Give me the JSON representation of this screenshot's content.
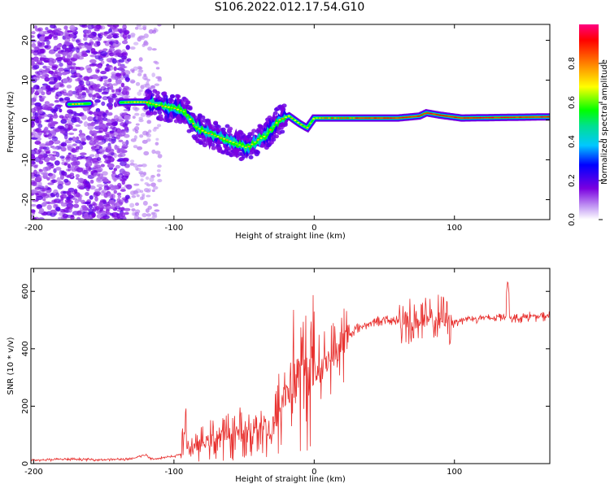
{
  "title": "S106.2022.012.17.54.G10",
  "chart_data": [
    {
      "type": "heatmap",
      "xlabel": "Height of straight line (km)",
      "ylabel": "Frequency (Hz)",
      "xlim": [
        -202,
        168
      ],
      "ylim": [
        -25,
        24
      ],
      "xticks": [
        -200,
        -100,
        0,
        100
      ],
      "yticks": [
        -20,
        -10,
        0,
        10,
        20
      ],
      "grid": false,
      "ridge": [
        {
          "x": -170,
          "f": 4.0
        },
        {
          "x": -130,
          "f": 4.5
        },
        {
          "x": -120,
          "f": 4.5
        },
        {
          "x": -108,
          "f": 3.5
        },
        {
          "x": -100,
          "f": 3.0
        },
        {
          "x": -92,
          "f": 2.0
        },
        {
          "x": -85,
          "f": -1.5
        },
        {
          "x": -78,
          "f": -3.0
        },
        {
          "x": -70,
          "f": -4.0
        },
        {
          "x": -62,
          "f": -5.0
        },
        {
          "x": -55,
          "f": -6.0
        },
        {
          "x": -48,
          "f": -7.0
        },
        {
          "x": -40,
          "f": -5.0
        },
        {
          "x": -35,
          "f": -4.0
        },
        {
          "x": -30,
          "f": -2.0
        },
        {
          "x": -25,
          "f": 0.0
        },
        {
          "x": -18,
          "f": 1.0
        },
        {
          "x": -10,
          "f": -1.0
        },
        {
          "x": -5,
          "f": -2.0
        },
        {
          "x": 0,
          "f": 0.5
        },
        {
          "x": 10,
          "f": 0.5
        },
        {
          "x": 30,
          "f": 0.5
        },
        {
          "x": 60,
          "f": 0.5
        },
        {
          "x": 75,
          "f": 1.0
        },
        {
          "x": 80,
          "f": 1.8
        },
        {
          "x": 90,
          "f": 1.2
        },
        {
          "x": 105,
          "f": 0.5
        },
        {
          "x": 168,
          "f": 0.8
        }
      ],
      "colorbar": {
        "label": "Normalized spectral amplitude",
        "range": [
          0,
          1
        ],
        "ticks": [
          "0.0",
          "0.2",
          "0.4",
          "0.6",
          "0.8"
        ]
      }
    },
    {
      "type": "line",
      "xlabel": "Height of straight line (km)",
      "ylabel": "SNR (10 * v/v)",
      "xlim": [
        -202,
        168
      ],
      "ylim": [
        0,
        680
      ],
      "xticks": [
        -200,
        -100,
        0,
        100
      ],
      "yticks": [
        0,
        200,
        400,
        600
      ],
      "grid": false,
      "color": "#e8302e",
      "series": [
        {
          "x": [
            -202,
            -190,
            -180,
            -170,
            -160,
            -150,
            -140,
            -130,
            -125,
            -120,
            -115,
            -110,
            -105,
            -100,
            -95,
            -92,
            -90,
            -85,
            -80,
            -75,
            -70,
            -65,
            -60,
            -55,
            -50,
            -45,
            -40,
            -35,
            -30,
            -25,
            -20,
            -15,
            -10,
            -5,
            0,
            5,
            10,
            15,
            20,
            25,
            30,
            35,
            40,
            45,
            50,
            55,
            60,
            65,
            70,
            75,
            80,
            85,
            90,
            95,
            100,
            105,
            110,
            115,
            120,
            125,
            130,
            135,
            140,
            145,
            150,
            155,
            160,
            168
          ],
          "values": [
            12,
            13,
            15,
            15,
            14,
            14,
            15,
            15,
            25,
            30,
            15,
            20,
            22,
            25,
            35,
            120,
            60,
            55,
            70,
            80,
            90,
            95,
            100,
            110,
            100,
            120,
            140,
            120,
            100,
            180,
            250,
            300,
            290,
            320,
            330,
            340,
            360,
            380,
            420,
            450,
            470,
            480,
            490,
            495,
            500,
            495,
            500,
            505,
            490,
            500,
            495,
            500,
            505,
            500,
            495,
            500,
            505,
            505,
            510,
            505,
            510,
            515,
            510,
            505,
            510,
            515,
            510,
            515
          ]
        }
      ]
    }
  ]
}
